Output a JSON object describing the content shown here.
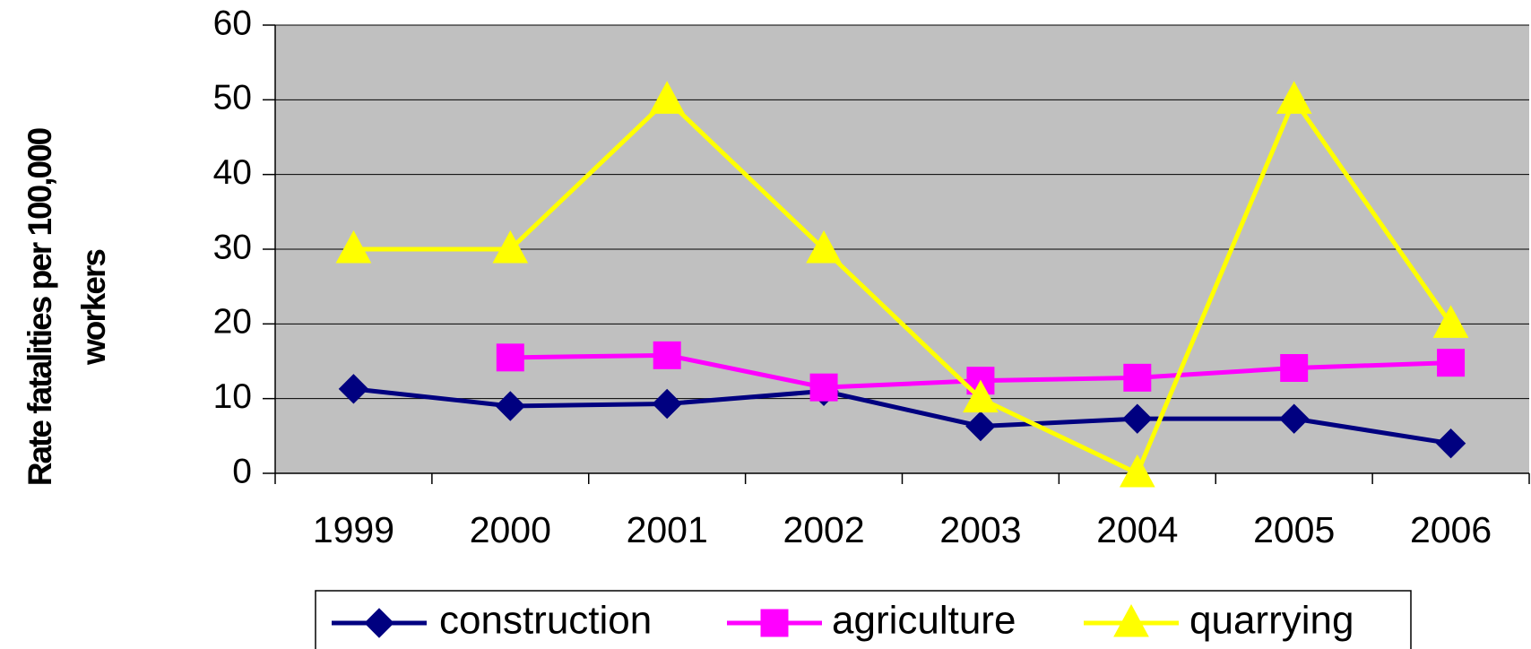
{
  "chart_data": {
    "type": "line",
    "y_label": "Rate fatalities per 100,000 workers",
    "categories": [
      "1999",
      "2000",
      "2001",
      "2002",
      "2003",
      "2004",
      "2005",
      "2006"
    ],
    "series": [
      {
        "name": "construction",
        "color": "#000080",
        "marker": "diamond",
        "values": [
          11.3,
          9,
          9.3,
          11,
          6.3,
          7.3,
          7.3,
          4
        ]
      },
      {
        "name": "agriculture",
        "color": "#FF00FF",
        "marker": "square",
        "values": [
          null,
          15.5,
          15.8,
          11.5,
          12.4,
          12.8,
          14.1,
          14.8
        ]
      },
      {
        "name": "quarrying",
        "color": "#FFFF00",
        "marker": "triangle",
        "values": [
          30,
          30,
          50,
          30,
          10,
          0,
          50,
          20
        ]
      }
    ],
    "ylim": [
      0,
      60
    ],
    "yticks": [
      0,
      10,
      20,
      30,
      40,
      50,
      60
    ],
    "grid": true,
    "legend": "bottom",
    "background": "#C0C0C0"
  }
}
